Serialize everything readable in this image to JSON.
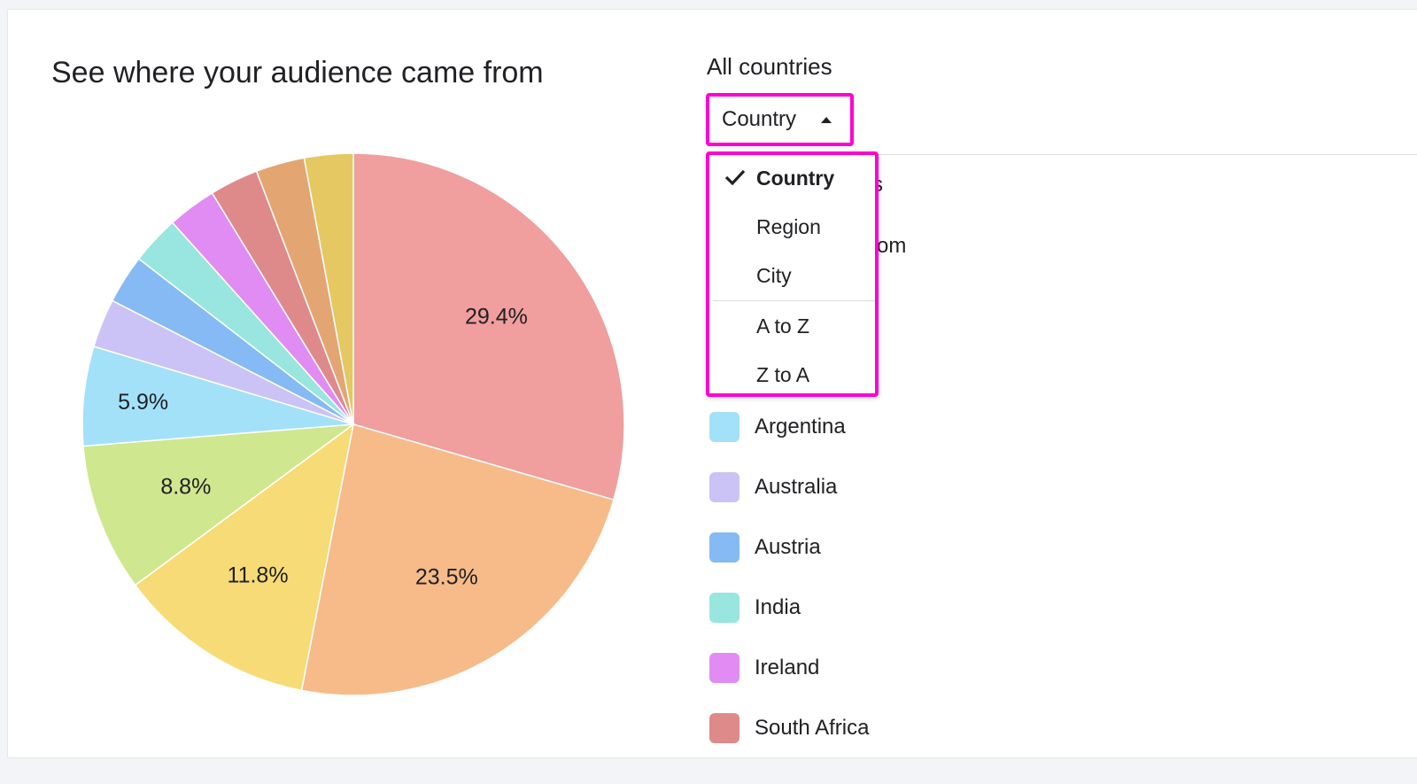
{
  "card": {
    "title": "See where your audience came from"
  },
  "filter": {
    "label": "All countries",
    "dropdown_value": "Country",
    "menu_items": [
      {
        "label": "Country",
        "selected": true
      },
      {
        "label": "Region",
        "selected": false
      },
      {
        "label": "City",
        "selected": false
      },
      {
        "label": "A to Z",
        "selected": false
      },
      {
        "label": "Z to A",
        "selected": false
      }
    ],
    "behind_menu_fragments": [
      "s",
      "om"
    ],
    "highlight_color": "#ff00d4"
  },
  "legend": [
    {
      "name": "Argentina",
      "color": "#a3e1f9"
    },
    {
      "name": "Australia",
      "color": "#cbc3f5"
    },
    {
      "name": "Austria",
      "color": "#86baf5"
    },
    {
      "name": "India",
      "color": "#98e6df"
    },
    {
      "name": "Ireland",
      "color": "#e08cf3"
    },
    {
      "name": "South Africa",
      "color": "#df8a8a"
    }
  ],
  "chart_data": {
    "type": "pie",
    "slices": [
      {
        "value": 29.4,
        "label": "29.4%",
        "color": "#f09e9e"
      },
      {
        "value": 23.5,
        "label": "23.5%",
        "color": "#f6bb89"
      },
      {
        "value": 11.8,
        "label": "11.8%",
        "color": "#f7db76"
      },
      {
        "value": 8.8,
        "label": "8.8%",
        "color": "#cfe78f"
      },
      {
        "value": 5.9,
        "label": "5.9%",
        "color": "#a3e1f9"
      },
      {
        "value": 2.9,
        "label": "",
        "color": "#cbc3f5"
      },
      {
        "value": 2.9,
        "label": "",
        "color": "#86baf5"
      },
      {
        "value": 2.9,
        "label": "",
        "color": "#98e6df"
      },
      {
        "value": 2.9,
        "label": "",
        "color": "#e08cf3"
      },
      {
        "value": 2.9,
        "label": "",
        "color": "#df8a8a"
      },
      {
        "value": 2.9,
        "label": "",
        "color": "#e3a673"
      },
      {
        "value": 2.9,
        "label": "",
        "color": "#e5c862"
      }
    ]
  }
}
